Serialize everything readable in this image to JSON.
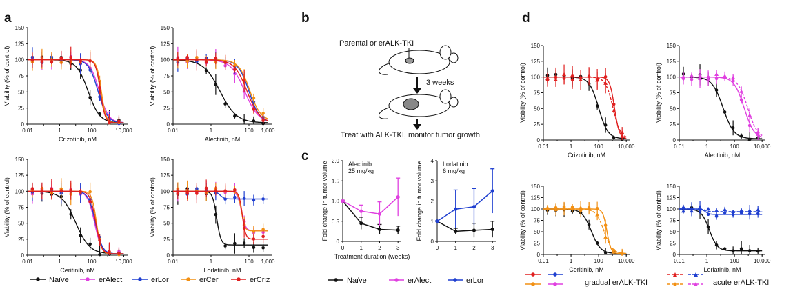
{
  "figure": {
    "panel_labels": {
      "a": "a",
      "b": "b",
      "c": "c",
      "d": "d"
    },
    "colors": {
      "naive": "#111111",
      "erAlect": "#e040e0",
      "erLor": "#1f3fd0",
      "erCer": "#f29014",
      "erCriz": "#e02020"
    },
    "legend_a": [
      {
        "key": "naive",
        "label": "Naïve"
      },
      {
        "key": "erAlect",
        "label": "erAlect"
      },
      {
        "key": "erLor",
        "label": "erLor"
      },
      {
        "key": "erCer",
        "label": "erCer"
      },
      {
        "key": "erCriz",
        "label": "erCriz"
      }
    ],
    "legend_c": [
      {
        "key": "naive",
        "label": "Naïve"
      },
      {
        "key": "erAlect",
        "label": "erAlect"
      },
      {
        "key": "erLor",
        "label": "erLor"
      }
    ],
    "legend_d": {
      "gradual": "gradual erALK-TKI",
      "acute": "acute erALK-TKI"
    },
    "diagram_b": {
      "top_label": "Parental or erALK-TKI",
      "arrow_label": "3 weeks",
      "bottom_label": "Treat with ALK-TKI, monitor tumor growth"
    }
  },
  "chart_data": [
    {
      "id": "a1",
      "type": "line",
      "xscale": "log",
      "xlabel": "Crizotinib, nM",
      "ylabel": "Viability (% of control)",
      "xticks": [
        0.01,
        1,
        100,
        10000
      ],
      "xticklabels": [
        "0.01",
        "1",
        "100",
        "10,000"
      ],
      "yticks": [
        0,
        25,
        50,
        75,
        100,
        125,
        150
      ],
      "ylim": [
        0,
        150
      ],
      "series": [
        {
          "name": "Naïve",
          "color": "naive",
          "top": 100,
          "bottom": 2,
          "ic50": 60,
          "hill": 1.2
        },
        {
          "name": "erAlect",
          "color": "erAlect",
          "top": 100,
          "bottom": 2,
          "ic50": 300,
          "hill": 1.5
        },
        {
          "name": "erLor",
          "color": "erLor",
          "top": 100,
          "bottom": 2,
          "ic50": 250,
          "hill": 1.5
        },
        {
          "name": "erCer",
          "color": "erCer",
          "top": 100,
          "bottom": 2,
          "ic50": 400,
          "hill": 3
        },
        {
          "name": "erCriz",
          "color": "erCriz",
          "top": 100,
          "bottom": 2,
          "ic50": 350,
          "hill": 3
        }
      ]
    },
    {
      "id": "a2",
      "type": "line",
      "xscale": "log",
      "xlabel": "Alectinib, nM",
      "ylabel": "Viability (% of control)",
      "xticks": [
        0.01,
        1,
        100,
        1000
      ],
      "xticklabels": [
        "0.01",
        "1",
        "100",
        "1,000"
      ],
      "yticks": [
        0,
        25,
        50,
        75,
        100,
        125,
        150
      ],
      "ylim": [
        0,
        150
      ],
      "series": [
        {
          "name": "Naïve",
          "color": "naive",
          "top": 100,
          "bottom": 2,
          "ic50": 3,
          "hill": 1
        },
        {
          "name": "erAlect",
          "color": "erAlect",
          "top": 100,
          "bottom": 2,
          "ic50": 60,
          "hill": 1.2
        },
        {
          "name": "erLor",
          "color": "erLor",
          "top": 100,
          "bottom": 2,
          "ic50": 100,
          "hill": 1.5
        },
        {
          "name": "erCer",
          "color": "erCer",
          "top": 100,
          "bottom": 5,
          "ic50": 110,
          "hill": 1.5
        },
        {
          "name": "erCriz",
          "color": "erCriz",
          "top": 100,
          "bottom": 2,
          "ic50": 80,
          "hill": 1.3
        }
      ]
    },
    {
      "id": "a3",
      "type": "line",
      "xscale": "log",
      "xlabel": "Ceritinib, nM",
      "ylabel": "Viability (% of control)",
      "xticks": [
        0.01,
        1,
        100,
        10000
      ],
      "xticklabels": [
        "0.01",
        "1",
        "100",
        "10,000"
      ],
      "yticks": [
        0,
        25,
        50,
        75,
        100,
        125,
        150
      ],
      "ylim": [
        0,
        150
      ],
      "series": [
        {
          "name": "Naïve",
          "color": "naive",
          "top": 100,
          "bottom": 2,
          "ic50": 10,
          "hill": 1
        },
        {
          "name": "erAlect",
          "color": "erAlect",
          "top": 100,
          "bottom": 2,
          "ic50": 150,
          "hill": 2
        },
        {
          "name": "erLor",
          "color": "erLor",
          "top": 100,
          "bottom": 2,
          "ic50": 170,
          "hill": 2
        },
        {
          "name": "erCer",
          "color": "erCer",
          "top": 100,
          "bottom": 2,
          "ic50": 200,
          "hill": 3
        },
        {
          "name": "erCriz",
          "color": "erCriz",
          "top": 100,
          "bottom": 2,
          "ic50": 180,
          "hill": 2.5
        }
      ]
    },
    {
      "id": "a4",
      "type": "line",
      "xscale": "log",
      "xlabel": "Lorlatinib, nM",
      "ylabel": "Viability (% of control)",
      "xticks": [
        0.01,
        1,
        100,
        1000
      ],
      "xticklabels": [
        "0.01",
        "1",
        "100",
        "1,000"
      ],
      "yticks": [
        0,
        25,
        50,
        75,
        100,
        125,
        150
      ],
      "ylim": [
        0,
        150
      ],
      "series": [
        {
          "name": "Naïve",
          "color": "naive",
          "top": 100,
          "bottom": 16,
          "ic50": 2,
          "hill": 4
        },
        {
          "name": "erAlect",
          "color": "erAlect",
          "top": 100,
          "bottom": 38,
          "ic50": 40,
          "hill": 4
        },
        {
          "name": "erLor",
          "color": "erLor",
          "top": 100,
          "bottom": 88,
          "ic50": 3,
          "hill": 4
        },
        {
          "name": "erCer",
          "color": "erCer",
          "top": 100,
          "bottom": 38,
          "ic50": 40,
          "hill": 5
        },
        {
          "name": "erCriz",
          "color": "erCriz",
          "top": 100,
          "bottom": 25,
          "ic50": 45,
          "hill": 5
        }
      ]
    },
    {
      "id": "c1",
      "type": "line",
      "xscale": "linear",
      "xlabel": "Treatment duration (weeks)",
      "ylabel": "Fold change in tumor volume",
      "annotation": [
        "Alectinib",
        "25 mg/kg"
      ],
      "x": [
        0,
        1,
        2,
        3
      ],
      "xticks": [
        0,
        1,
        2,
        3
      ],
      "yticks": [
        0,
        0.5,
        1,
        1.5,
        2
      ],
      "yticklabels": [
        "0",
        "0.5",
        "1.0",
        "1.5",
        "2.0"
      ],
      "ylim": [
        0,
        2
      ],
      "series": [
        {
          "name": "Naïve",
          "color": "naive",
          "values": [
            1,
            0.45,
            0.3,
            0.28
          ],
          "err": [
            0.02,
            0.15,
            0.12,
            0.1
          ]
        },
        {
          "name": "erAlect",
          "color": "erAlect",
          "values": [
            1,
            0.75,
            0.68,
            1.1
          ],
          "err": [
            0.02,
            0.15,
            0.3,
            0.47
          ]
        }
      ]
    },
    {
      "id": "c2",
      "type": "line",
      "xscale": "linear",
      "xlabel": "",
      "ylabel": "Fold change in tumor volume",
      "annotation": [
        "Lorlatinib",
        "6 mg/kg"
      ],
      "x": [
        0,
        1,
        2,
        3
      ],
      "xticks": [
        0,
        1,
        2,
        3
      ],
      "yticks": [
        0,
        1,
        2,
        3,
        4
      ],
      "yticklabels": [
        "0",
        "1",
        "2",
        "3",
        "4"
      ],
      "ylim": [
        0,
        4
      ],
      "series": [
        {
          "name": "Naïve",
          "color": "naive",
          "values": [
            1,
            0.5,
            0.55,
            0.6
          ],
          "err": [
            0.02,
            0.15,
            0.35,
            0.4
          ]
        },
        {
          "name": "erLor",
          "color": "erLor",
          "values": [
            1,
            1.6,
            1.72,
            2.5
          ],
          "err": [
            0.02,
            0.95,
            0.9,
            1.1
          ]
        }
      ]
    },
    {
      "id": "d1",
      "type": "line",
      "xscale": "log",
      "xlabel": "Crizotinib, nM",
      "ylabel": "Viability (% of control)",
      "xticks": [
        0.01,
        1,
        100,
        10000
      ],
      "xticklabels": [
        "0.01",
        "1",
        "100",
        "10,000"
      ],
      "yticks": [
        0,
        25,
        50,
        75,
        100,
        125,
        150
      ],
      "ylim": [
        0,
        150
      ],
      "series": [
        {
          "name": "Naïve",
          "color": "naive",
          "top": 100,
          "bottom": 2,
          "ic50": 100,
          "hill": 1.3
        },
        {
          "name": "gradual",
          "color": "erCriz",
          "top": 100,
          "bottom": 2,
          "ic50": 1400,
          "hill": 2.5
        },
        {
          "name": "acute",
          "color": "erCriz",
          "dashed": true,
          "top": 100,
          "bottom": 2,
          "ic50": 1100,
          "hill": 1.6
        }
      ]
    },
    {
      "id": "d2",
      "type": "line",
      "xscale": "log",
      "xlabel": "Alectinib, nM",
      "ylabel": "Viability (% of control)",
      "xticks": [
        0.01,
        1,
        100,
        10000
      ],
      "xticklabels": [
        "0.01",
        "1",
        "100",
        "10,000"
      ],
      "yticks": [
        0,
        25,
        50,
        75,
        100,
        125,
        150
      ],
      "ylim": [
        0,
        150
      ],
      "series": [
        {
          "name": "Naïve",
          "color": "naive",
          "top": 100,
          "bottom": 2,
          "ic50": 15,
          "hill": 1.1
        },
        {
          "name": "gradual",
          "color": "erAlect",
          "top": 100,
          "bottom": 2,
          "ic50": 500,
          "hill": 1.2
        },
        {
          "name": "acute",
          "color": "erAlect",
          "dashed": true,
          "top": 100,
          "bottom": 2,
          "ic50": 900,
          "hill": 1.2
        }
      ]
    },
    {
      "id": "d3",
      "type": "line",
      "xscale": "log",
      "xlabel": "Ceritinib, nM",
      "ylabel": "Viability (% of control)",
      "xticks": [
        0.01,
        1,
        100,
        10000
      ],
      "xticklabels": [
        "0.01",
        "1",
        "100",
        "10,000"
      ],
      "yticks": [
        0,
        25,
        50,
        75,
        100,
        125,
        150
      ],
      "ylim": [
        0,
        150
      ],
      "series": [
        {
          "name": "Naïve",
          "color": "naive",
          "top": 100,
          "bottom": 2,
          "ic50": 30,
          "hill": 1.3
        },
        {
          "name": "gradual",
          "color": "erCer",
          "top": 100,
          "bottom": 2,
          "ic50": 400,
          "hill": 3
        },
        {
          "name": "acute",
          "color": "erCer",
          "dashed": true,
          "top": 100,
          "bottom": 2,
          "ic50": 250,
          "hill": 1.5
        }
      ]
    },
    {
      "id": "d4",
      "type": "line",
      "xscale": "log",
      "xlabel": "Lorlatinib, nM",
      "ylabel": "Viability (% of control)",
      "xticks": [
        0.01,
        1,
        100,
        10000
      ],
      "xticklabels": [
        "0.01",
        "1",
        "100",
        "10,000"
      ],
      "yticks": [
        0,
        25,
        50,
        75,
        100,
        125,
        150
      ],
      "ylim": [
        0,
        150
      ],
      "series": [
        {
          "name": "Naïve",
          "color": "naive",
          "top": 100,
          "bottom": 8,
          "ic50": 1.5,
          "hill": 1.5
        },
        {
          "name": "gradual",
          "color": "erLor",
          "top": 100,
          "bottom": 88,
          "ic50": 0.8,
          "hill": 3
        },
        {
          "name": "acute",
          "color": "erLor",
          "dashed": true,
          "top": 100,
          "bottom": 94,
          "ic50": 0.8,
          "hill": 3
        }
      ]
    }
  ]
}
